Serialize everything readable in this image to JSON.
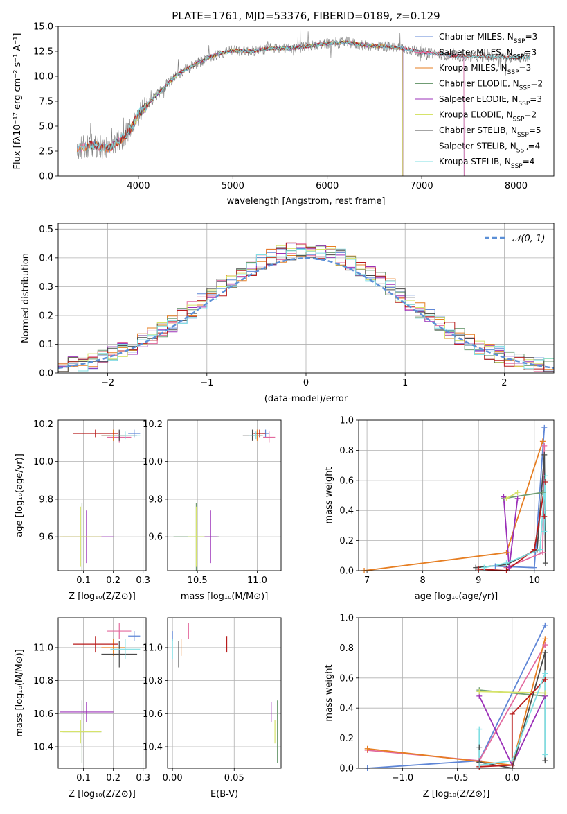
{
  "title": "PLATE=1761, MJD=53376, FIBERID=0189, z=0.129",
  "colors": {
    "Chabrier MILES": "#5f86d6",
    "Salpeter MILES": "#e36a9e",
    "Kroupa MILES": "#e67e22",
    "Chabrier ELODIE": "#6f9c73",
    "Salpeter ELODIE": "#9b30b8",
    "Kroupa ELODIE": "#d6e36a",
    "Chabrier STELIB": "#4a4a4a",
    "Salpeter STELIB": "#b81c1c",
    "Kroupa STELIB": "#7fdfe3",
    "data": "#808080",
    "gauss": "#5b8fd6"
  },
  "chart_data": [
    {
      "id": "spectrum",
      "type": "line",
      "title": "PLATE=1761, MJD=53376, FIBERID=0189, z=0.129",
      "xlabel": "wavelength [Angstrom, rest frame]",
      "ylabel": "Flux [fλ10⁻¹⁷ erg cm⁻² s⁻¹ A⁻¹]",
      "xlim": [
        3150,
        8400
      ],
      "ylim": [
        0,
        15
      ],
      "xticks": [
        4000,
        5000,
        6000,
        7000,
        8000
      ],
      "yticks": [
        0.0,
        2.5,
        5.0,
        7.5,
        10.0,
        12.5,
        15.0
      ],
      "ytick_labels": [
        "0.0",
        "2.5",
        "5.0",
        "7.5",
        "10.0",
        "12.5",
        "15.0"
      ],
      "continuum": {
        "x": [
          3350,
          3500,
          3700,
          3900,
          4000,
          4200,
          4400,
          4600,
          4800,
          5000,
          5200,
          5400,
          5600,
          5800,
          6000,
          6200,
          6400,
          6600,
          6800,
          7000,
          7200,
          7400,
          7600,
          7800,
          8000,
          8150
        ],
        "y": [
          2.7,
          3.1,
          2.8,
          4.4,
          6.2,
          8.2,
          10.1,
          11.2,
          12.1,
          12.6,
          12.5,
          12.8,
          12.8,
          13.0,
          13.3,
          13.4,
          13.1,
          13.0,
          12.8,
          12.4,
          12.2,
          12.0,
          12.0,
          11.9,
          11.9,
          11.9
        ]
      },
      "legend": [
        "Chabrier MILES, N_SSP=3",
        "Salpeter MILES, N_SSP=3",
        "Kroupa MILES, N_SSP=3",
        "Chabrier ELODIE, N_SSP=2",
        "Salpeter ELODIE, N_SSP=3",
        "Kroupa ELODIE, N_SSP=2",
        "Chabrier STELIB, N_SSP=5",
        "Salpeter STELIB, N_SSP=4",
        "Kroupa STELIB, N_SSP=4"
      ],
      "legend_placement": "upper right",
      "model_spans": {
        "Chabrier MILES": [
          3350,
          7450
        ],
        "Salpeter MILES": [
          3350,
          7450
        ],
        "Kroupa MILES": [
          3350,
          6800
        ],
        "Chabrier ELODIE": [
          4000,
          6800
        ],
        "Salpeter ELODIE": [
          4000,
          6800
        ],
        "Kroupa ELODIE": [
          3900,
          6800
        ],
        "Chabrier STELIB": [
          3450,
          8150
        ],
        "Salpeter STELIB": [
          3450,
          8150
        ],
        "Kroupa STELIB": [
          3350,
          8150
        ]
      }
    },
    {
      "id": "residuals",
      "type": "bar",
      "xlabel": "(data-model)/error",
      "ylabel": "Normed distribution",
      "xlim": [
        -2.5,
        2.5
      ],
      "ylim": [
        0,
        0.52
      ],
      "xticks": [
        -2,
        -1,
        0,
        1,
        2
      ],
      "xtick_labels": [
        "−2",
        "−1",
        "0",
        "1",
        "2"
      ],
      "yticks": [
        0.0,
        0.1,
        0.2,
        0.3,
        0.4,
        0.5
      ],
      "ytick_labels": [
        "0.0",
        "0.1",
        "0.2",
        "0.3",
        "0.4",
        "0.5"
      ],
      "legend": "𝒩(0, 1)",
      "legend_placement": "upper right",
      "bin_width": 0.1,
      "bin_start": -2.5,
      "grid": true
    },
    {
      "id": "age_vs_Z",
      "type": "scatter",
      "xlabel": "Z [log₁₀(Z/Z⊙)]",
      "ylabel": "age  [log₁₀(age/yr)]",
      "xlim": [
        0.015,
        0.31
      ],
      "ylim": [
        9.42,
        10.22
      ],
      "xticks": [
        0.1,
        0.2,
        0.3
      ],
      "xtick_labels": [
        "0.1",
        "0.2",
        "0.3"
      ],
      "yticks": [
        9.6,
        9.8,
        10.0,
        10.2
      ],
      "ytick_labels": [
        "9.6",
        "9.8",
        "10.0",
        "10.2"
      ]
    },
    {
      "id": "age_vs_mass",
      "type": "scatter",
      "xlabel": "mass [log₁₀(M/M⊙)]",
      "xlim": [
        10.25,
        11.2
      ],
      "ylim": [
        9.42,
        10.22
      ],
      "xticks": [
        10.5,
        11.0
      ],
      "xtick_labels": [
        "10.5",
        "11.0"
      ],
      "yticks": [
        9.6,
        9.8,
        10.0,
        10.2
      ],
      "ytick_labels": [
        "9.6",
        "9.8",
        "10.0",
        "10.2"
      ]
    },
    {
      "id": "weight_vs_age",
      "type": "line",
      "xlabel": "age  [log₁₀(age/yr)]",
      "ylabel": "mass weight",
      "xlim": [
        6.85,
        10.35
      ],
      "ylim": [
        0,
        1.0
      ],
      "xticks": [
        7,
        8,
        9,
        10
      ],
      "xtick_labels": [
        "7",
        "8",
        "9",
        "10"
      ],
      "yticks": [
        0.0,
        0.2,
        0.4,
        0.6,
        0.8,
        1.0
      ],
      "ytick_labels": [
        "0.0",
        "0.2",
        "0.4",
        "0.6",
        "0.8",
        "1.0"
      ],
      "grid": true,
      "series": [
        {
          "model": "Chabrier MILES",
          "x": [
            9.3,
            10.0,
            10.18
          ],
          "y": [
            0.03,
            0.02,
            0.95
          ]
        },
        {
          "model": "Salpeter MILES",
          "x": [
            9.5,
            10.15,
            10.18
          ],
          "y": [
            0.02,
            0.12,
            0.83
          ]
        },
        {
          "model": "Kroupa MILES",
          "x": [
            6.95,
            9.5,
            10.15
          ],
          "y": [
            0.0,
            0.12,
            0.86
          ]
        },
        {
          "model": "Chabrier ELODIE",
          "x": [
            9.45,
            10.15
          ],
          "y": [
            0.48,
            0.52
          ]
        },
        {
          "model": "Salpeter ELODIE",
          "x": [
            9.45,
            9.55,
            9.7
          ],
          "y": [
            0.49,
            0.02,
            0.48
          ]
        },
        {
          "model": "Kroupa ELODIE",
          "x": [
            9.5,
            9.7
          ],
          "y": [
            0.48,
            0.52
          ]
        },
        {
          "model": "Chabrier STELIB",
          "x": [
            8.95,
            9.5,
            10.05,
            10.18,
            10.2
          ],
          "y": [
            0.02,
            0.04,
            0.14,
            0.77,
            0.05
          ]
        },
        {
          "model": "Salpeter STELIB",
          "x": [
            9.0,
            9.5,
            10.0,
            10.2,
            10.18
          ],
          "y": [
            0.01,
            0.0,
            0.14,
            0.59,
            0.36
          ]
        },
        {
          "model": "Kroupa STELIB",
          "x": [
            9.1,
            9.5,
            10.1,
            10.2,
            10.18
          ],
          "y": [
            0.02,
            0.05,
            0.14,
            0.63,
            0.26
          ]
        }
      ]
    },
    {
      "id": "mass_vs_Z",
      "type": "scatter",
      "xlabel": "Z [log₁₀(Z/Z⊙)]",
      "ylabel": "mass [log₁₀(M/M⊙)]",
      "xlim": [
        0.015,
        0.31
      ],
      "ylim": [
        10.27,
        11.18
      ],
      "xticks": [
        0.1,
        0.2,
        0.3
      ],
      "xtick_labels": [
        "0.1",
        "0.2",
        "0.3"
      ],
      "yticks": [
        10.4,
        10.6,
        10.8,
        11.0
      ],
      "ytick_labels": [
        "10.4",
        "10.6",
        "10.8",
        "11.0"
      ]
    },
    {
      "id": "mass_vs_ebv",
      "type": "scatter",
      "xlabel": "E(B-V)",
      "xlim": [
        -0.004,
        0.088
      ],
      "ylim": [
        10.27,
        11.18
      ],
      "xticks": [
        0.0,
        0.05
      ],
      "xtick_labels": [
        "0.00",
        "0.05"
      ],
      "yticks": [
        10.4,
        10.6,
        10.8,
        11.0
      ],
      "ytick_labels": [
        "10.4",
        "10.6",
        "10.8",
        "11.0"
      ]
    },
    {
      "id": "weight_vs_Z",
      "type": "line",
      "xlabel": "Z [log₁₀(Z/Z⊙)]",
      "ylabel": "mass weight",
      "xlim": [
        -1.4,
        0.38
      ],
      "ylim": [
        0,
        1.0
      ],
      "xticks": [
        -1.0,
        -0.5,
        0.0
      ],
      "xtick_labels": [
        "−1.0",
        "−0.5",
        "0.0"
      ],
      "yticks": [
        0.0,
        0.2,
        0.4,
        0.6,
        0.8,
        1.0
      ],
      "ytick_labels": [
        "0.0",
        "0.2",
        "0.4",
        "0.6",
        "0.8",
        "1.0"
      ],
      "grid": true,
      "series": [
        {
          "model": "Chabrier MILES",
          "x": [
            -1.32,
            -0.3,
            0.3
          ],
          "y": [
            0.0,
            0.05,
            0.95
          ]
        },
        {
          "model": "Salpeter MILES",
          "x": [
            -1.32,
            -0.3,
            0.3
          ],
          "y": [
            0.12,
            0.05,
            0.82
          ]
        },
        {
          "model": "Kroupa MILES",
          "x": [
            -1.32,
            0.0,
            0.3
          ],
          "y": [
            0.13,
            0.02,
            0.86
          ]
        },
        {
          "model": "Chabrier ELODIE",
          "x": [
            -0.3,
            0.3
          ],
          "y": [
            0.52,
            0.48
          ]
        },
        {
          "model": "Salpeter ELODIE",
          "x": [
            -0.3,
            0.0,
            0.3
          ],
          "y": [
            0.48,
            0.02,
            0.48
          ]
        },
        {
          "model": "Kroupa ELODIE",
          "x": [
            -0.3,
            0.3
          ],
          "y": [
            0.51,
            0.5
          ]
        },
        {
          "model": "Chabrier STELIB",
          "x": [
            -0.3,
            -0.3,
            0.0,
            0.3,
            0.3
          ],
          "y": [
            0.14,
            0.04,
            0.0,
            0.77,
            0.05
          ]
        },
        {
          "model": "Salpeter STELIB",
          "x": [
            -0.3,
            0.0,
            0.0,
            0.3
          ],
          "y": [
            0.01,
            0.02,
            0.36,
            0.59
          ]
        },
        {
          "model": "Kroupa STELIB",
          "x": [
            -0.3,
            -0.3,
            0.0,
            0.3,
            0.3
          ],
          "y": [
            0.26,
            0.02,
            0.05,
            0.63,
            0.09
          ]
        }
      ]
    }
  ],
  "points": [
    {
      "model": "Chabrier MILES",
      "Z": 0.27,
      "age": 10.15,
      "mass": 11.07,
      "ebv": 0.0,
      "zerr": 0.02,
      "aerr": 0.02,
      "merr": 0.03
    },
    {
      "model": "Salpeter MILES",
      "Z": 0.22,
      "age": 10.13,
      "mass": 11.1,
      "ebv": 0.013,
      "zerr": 0.04,
      "aerr": 0.03,
      "merr": 0.05
    },
    {
      "model": "Kroupa MILES",
      "Z": 0.2,
      "age": 10.14,
      "mass": 11.0,
      "ebv": 0.007,
      "zerr": 0.04,
      "aerr": 0.03,
      "merr": 0.05
    },
    {
      "model": "Chabrier ELODIE",
      "Z": 0.095,
      "age": 9.6,
      "mass": 10.49,
      "ebv": 0.085,
      "zerr": 0.065,
      "aerr": 0.18,
      "merr": 0.19
    },
    {
      "model": "Salpeter ELODIE",
      "Z": 0.11,
      "age": 9.6,
      "mass": 10.61,
      "ebv": 0.08,
      "zerr": 0.09,
      "aerr": 0.14,
      "merr": 0.06
    },
    {
      "model": "Kroupa ELODIE",
      "Z": 0.09,
      "age": 9.6,
      "mass": 10.49,
      "ebv": 0.083,
      "zerr": 0.07,
      "aerr": 0.16,
      "merr": 0.07
    },
    {
      "model": "Chabrier STELIB",
      "Z": 0.22,
      "age": 10.14,
      "mass": 10.96,
      "ebv": 0.005,
      "zerr": 0.06,
      "aerr": 0.03,
      "merr": 0.08
    },
    {
      "model": "Salpeter STELIB",
      "Z": 0.14,
      "age": 10.15,
      "mass": 11.02,
      "ebv": 0.044,
      "zerr": 0.075,
      "aerr": 0.02,
      "merr": 0.05
    },
    {
      "model": "Kroupa STELIB",
      "Z": 0.24,
      "age": 10.14,
      "mass": 10.99,
      "ebv": 0.0,
      "zerr": 0.05,
      "aerr": 0.02,
      "merr": 0.06
    }
  ]
}
